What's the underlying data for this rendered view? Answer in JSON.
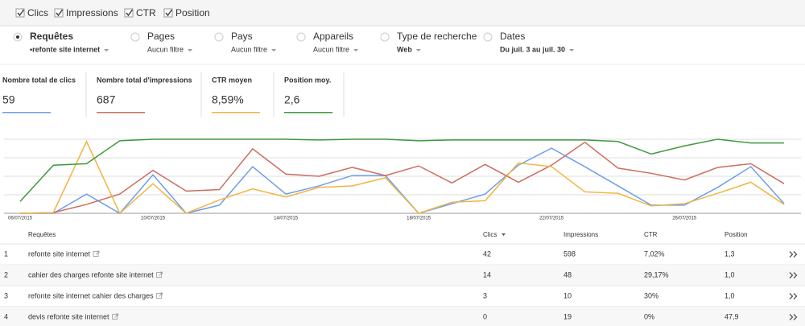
{
  "checkboxes": [
    {
      "label": "Clics",
      "checked": true
    },
    {
      "label": "Impressions",
      "checked": true
    },
    {
      "label": "CTR",
      "checked": true
    },
    {
      "label": "Position",
      "checked": true
    }
  ],
  "filters": [
    {
      "label": "Requêtes",
      "value": "•refonte site internet",
      "selected": true
    },
    {
      "label": "Pages",
      "value": "Aucun filtre",
      "selected": false
    },
    {
      "label": "Pays",
      "value": "Aucun filtre",
      "selected": false
    },
    {
      "label": "Appareils",
      "value": "Aucun filtre",
      "selected": false
    },
    {
      "label": "Type de recherche",
      "value": "Web",
      "selected": false
    },
    {
      "label": "Dates",
      "value": "Du juil. 3 au juil. 30",
      "selected": false
    }
  ],
  "metrics": [
    {
      "label": "Nombre total de clics",
      "value": "59",
      "color": "#6d9eeb"
    },
    {
      "label": "Nombre total d'impressions",
      "value": "687",
      "color": "#cc6d5e"
    },
    {
      "label": "CTR moyen",
      "value": "8,59%",
      "color": "#f0b542"
    },
    {
      "label": "Position moy.",
      "value": "2,6",
      "color": "#3d9a3d"
    }
  ],
  "chart_data": {
    "type": "line",
    "categories": [
      "06/07/2015",
      null,
      null,
      null,
      "10/07/2015",
      null,
      null,
      null,
      "14/07/2015",
      null,
      null,
      null,
      "18/07/2015",
      null,
      null,
      null,
      "22/07/2015",
      null,
      null,
      null,
      "26/07/2015",
      null,
      null,
      null
    ],
    "ylim": [
      0,
      100
    ],
    "yticks": [
      0,
      25,
      50,
      75,
      100
    ],
    "grid": true,
    "series": [
      {
        "name": "Clics",
        "color": "#6d9eeb",
        "values": [
          0,
          0,
          26,
          0,
          52,
          0,
          11,
          63,
          26,
          37,
          51,
          51,
          0,
          13,
          26,
          65,
          88,
          63,
          37,
          11,
          11,
          35,
          63,
          13
        ]
      },
      {
        "name": "Impressions",
        "color": "#cc6d5e",
        "values": [
          0,
          1,
          12,
          26,
          58,
          30,
          32,
          87,
          53,
          50,
          62,
          51,
          64,
          41,
          66,
          42,
          65,
          96,
          61,
          54,
          45,
          62,
          67,
          40
        ]
      },
      {
        "name": "CTR",
        "color": "#f0b542",
        "values": [
          0,
          1,
          97,
          0,
          40,
          0,
          18,
          33,
          22,
          35,
          37,
          48,
          0,
          15,
          17,
          68,
          63,
          29,
          27,
          10,
          13,
          27,
          42,
          12
        ]
      },
      {
        "name": "Position",
        "color": "#3d9a3d",
        "values": [
          16,
          65,
          67,
          98,
          100,
          100,
          100,
          100,
          100,
          99,
          100,
          100,
          98,
          99,
          99,
          99,
          99,
          99,
          97,
          80,
          91,
          100,
          95,
          95
        ]
      }
    ]
  },
  "table": {
    "headers": [
      "Requêtes",
      "Clics",
      "Impressions",
      "CTR",
      "Position"
    ],
    "rows": [
      [
        "1",
        "refonte site internet",
        "42",
        "598",
        "7,02%",
        "1,3"
      ],
      [
        "2",
        "cahier des charges refonte site internet",
        "14",
        "48",
        "29,17%",
        "1,0"
      ],
      [
        "3",
        "refonte site internet cahier des charges",
        "3",
        "10",
        "30%",
        "1,0"
      ],
      [
        "4",
        "devis refonte site internet",
        "0",
        "19",
        "0%",
        "47,9"
      ]
    ]
  }
}
